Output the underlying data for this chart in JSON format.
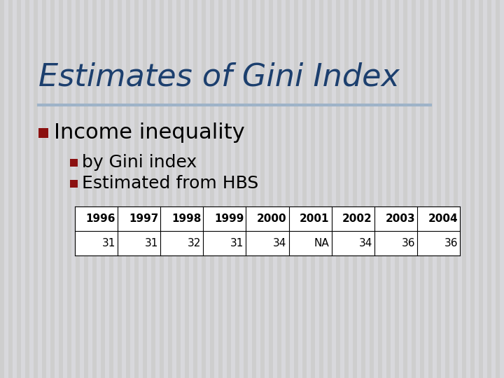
{
  "title": "Estimates of Gini Index",
  "title_color": "#1C3F6E",
  "title_fontsize": 32,
  "background_color": "#D4D4D8",
  "stripe_color1": "#CECECE",
  "stripe_color2": "#D8D8DC",
  "bullet_color": "#8B1010",
  "bullet1_text": "Income inequality",
  "bullet1_fontsize": 22,
  "bullet2a_text": "by Gini index",
  "bullet2b_text": "Estimated from HBS",
  "bullet2_fontsize": 18,
  "divider_color": "#9EB3C8",
  "table_years": [
    "1996",
    "1997",
    "1998",
    "1999",
    "2000",
    "2001",
    "2002",
    "2003",
    "2004"
  ],
  "table_values": [
    "31",
    "31",
    "32",
    "31",
    "34",
    "NA",
    "34",
    "36",
    "36"
  ],
  "table_fontsize": 11
}
